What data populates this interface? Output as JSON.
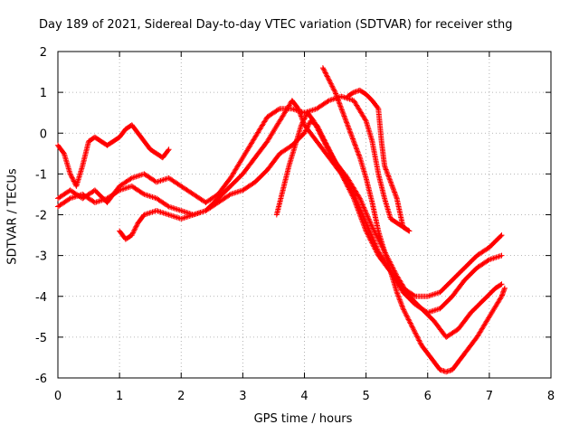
{
  "chart_data": {
    "type": "line",
    "title": "Day 189 of 2021, Sidereal Day-to-day VTEC variation (SDTVAR) for receiver sthg",
    "xlabel": "GPS time / hours",
    "ylabel": "SDTVAR / TECUs",
    "xlim": [
      0,
      8
    ],
    "ylim": [
      -6,
      2
    ],
    "xticks": [
      0,
      1,
      2,
      3,
      4,
      5,
      6,
      7,
      8
    ],
    "yticks": [
      -6,
      -5,
      -4,
      -3,
      -2,
      -1,
      0,
      1,
      2
    ],
    "grid": true,
    "marker": "plus",
    "color": "#ff0000",
    "series": [
      {
        "name": "s1",
        "points": [
          [
            0.0,
            -0.3
          ],
          [
            0.1,
            -0.5
          ],
          [
            0.2,
            -1.0
          ],
          [
            0.3,
            -1.3
          ],
          [
            0.4,
            -0.8
          ],
          [
            0.5,
            -0.2
          ],
          [
            0.6,
            -0.1
          ],
          [
            0.7,
            -0.2
          ],
          [
            0.8,
            -0.3
          ],
          [
            0.9,
            -0.2
          ],
          [
            1.0,
            -0.1
          ],
          [
            1.1,
            0.1
          ],
          [
            1.2,
            0.2
          ],
          [
            1.3,
            0.0
          ],
          [
            1.4,
            -0.2
          ],
          [
            1.5,
            -0.4
          ],
          [
            1.6,
            -0.5
          ],
          [
            1.7,
            -0.6
          ],
          [
            1.8,
            -0.4
          ]
        ]
      },
      {
        "name": "s2",
        "points": [
          [
            0.0,
            -1.8
          ],
          [
            0.2,
            -1.6
          ],
          [
            0.4,
            -1.5
          ],
          [
            0.6,
            -1.7
          ],
          [
            0.8,
            -1.6
          ],
          [
            1.0,
            -1.4
          ],
          [
            1.2,
            -1.3
          ],
          [
            1.4,
            -1.5
          ],
          [
            1.6,
            -1.6
          ],
          [
            1.8,
            -1.8
          ],
          [
            2.0,
            -1.9
          ],
          [
            2.2,
            -2.0
          ],
          [
            2.4,
            -1.9
          ],
          [
            2.6,
            -1.7
          ],
          [
            2.8,
            -1.5
          ],
          [
            3.0,
            -1.4
          ],
          [
            3.2,
            -1.2
          ],
          [
            3.4,
            -0.9
          ],
          [
            3.6,
            -0.5
          ],
          [
            3.8,
            -0.3
          ],
          [
            4.0,
            0.0
          ],
          [
            4.1,
            0.3
          ],
          [
            4.2,
            0.2
          ],
          [
            4.3,
            -0.1
          ],
          [
            4.4,
            -0.4
          ],
          [
            4.6,
            -1.0
          ],
          [
            4.8,
            -1.6
          ],
          [
            5.0,
            -2.4
          ],
          [
            5.2,
            -3.0
          ],
          [
            5.4,
            -3.4
          ],
          [
            5.6,
            -3.9
          ],
          [
            5.8,
            -4.2
          ],
          [
            6.0,
            -4.4
          ],
          [
            6.2,
            -4.3
          ],
          [
            6.4,
            -4.0
          ],
          [
            6.6,
            -3.6
          ],
          [
            6.8,
            -3.3
          ],
          [
            7.0,
            -3.1
          ],
          [
            7.2,
            -3.0
          ]
        ]
      },
      {
        "name": "s3",
        "points": [
          [
            0.0,
            -1.6
          ],
          [
            0.2,
            -1.4
          ],
          [
            0.4,
            -1.6
          ],
          [
            0.6,
            -1.4
          ],
          [
            0.8,
            -1.7
          ],
          [
            1.0,
            -1.3
          ],
          [
            1.2,
            -1.1
          ],
          [
            1.4,
            -1.0
          ],
          [
            1.6,
            -1.2
          ],
          [
            1.8,
            -1.1
          ],
          [
            2.0,
            -1.3
          ],
          [
            2.2,
            -1.5
          ],
          [
            2.4,
            -1.7
          ],
          [
            2.6,
            -1.5
          ],
          [
            2.8,
            -1.1
          ],
          [
            3.0,
            -0.6
          ],
          [
            3.2,
            -0.1
          ],
          [
            3.4,
            0.4
          ],
          [
            3.6,
            0.6
          ],
          [
            3.8,
            0.6
          ],
          [
            4.0,
            0.5
          ],
          [
            4.2,
            0.6
          ],
          [
            4.4,
            0.8
          ],
          [
            4.6,
            0.9
          ],
          [
            4.8,
            0.8
          ],
          [
            5.0,
            0.3
          ],
          [
            5.1,
            -0.2
          ],
          [
            5.2,
            -1.0
          ],
          [
            5.3,
            -1.6
          ],
          [
            5.4,
            -2.1
          ],
          [
            5.5,
            -2.2
          ],
          [
            5.6,
            -2.3
          ],
          [
            5.7,
            -2.4
          ]
        ]
      },
      {
        "name": "s4",
        "points": [
          [
            1.0,
            -2.4
          ],
          [
            1.1,
            -2.6
          ],
          [
            1.2,
            -2.5
          ],
          [
            1.3,
            -2.2
          ],
          [
            1.4,
            -2.0
          ],
          [
            1.6,
            -1.9
          ],
          [
            1.8,
            -2.0
          ],
          [
            2.0,
            -2.1
          ],
          [
            2.2,
            -2.0
          ],
          [
            2.4,
            -1.9
          ],
          [
            2.6,
            -1.6
          ],
          [
            2.8,
            -1.3
          ],
          [
            3.0,
            -1.0
          ],
          [
            3.2,
            -0.6
          ],
          [
            3.4,
            -0.2
          ],
          [
            3.6,
            0.3
          ],
          [
            3.8,
            0.8
          ],
          [
            3.9,
            0.6
          ],
          [
            4.0,
            0.2
          ],
          [
            4.2,
            -0.2
          ],
          [
            4.4,
            -0.6
          ],
          [
            4.6,
            -1.0
          ],
          [
            4.8,
            -1.5
          ],
          [
            5.0,
            -2.2
          ],
          [
            5.2,
            -2.9
          ],
          [
            5.4,
            -3.4
          ],
          [
            5.6,
            -3.8
          ],
          [
            5.8,
            -4.0
          ],
          [
            6.0,
            -4.0
          ],
          [
            6.2,
            -3.9
          ],
          [
            6.4,
            -3.6
          ],
          [
            6.6,
            -3.3
          ],
          [
            6.8,
            -3.0
          ],
          [
            7.0,
            -2.8
          ],
          [
            7.2,
            -2.5
          ]
        ]
      },
      {
        "name": "s5",
        "points": [
          [
            3.55,
            -2.0
          ],
          [
            3.65,
            -1.4
          ],
          [
            3.75,
            -0.8
          ],
          [
            3.85,
            -0.3
          ],
          [
            3.95,
            0.2
          ],
          [
            4.05,
            0.5
          ],
          [
            4.15,
            0.3
          ],
          [
            4.25,
            0.0
          ],
          [
            4.35,
            -0.3
          ],
          [
            4.5,
            -0.7
          ],
          [
            4.7,
            -1.1
          ],
          [
            4.9,
            -1.6
          ],
          [
            5.1,
            -2.3
          ],
          [
            5.3,
            -2.9
          ],
          [
            5.5,
            -3.5
          ],
          [
            5.7,
            -4.0
          ],
          [
            5.9,
            -4.3
          ],
          [
            6.1,
            -4.6
          ],
          [
            6.3,
            -5.0
          ],
          [
            6.5,
            -4.8
          ],
          [
            6.7,
            -4.4
          ],
          [
            6.9,
            -4.1
          ],
          [
            7.1,
            -3.8
          ],
          [
            7.2,
            -3.7
          ]
        ]
      },
      {
        "name": "s6",
        "points": [
          [
            4.3,
            1.6
          ],
          [
            4.4,
            1.3
          ],
          [
            4.5,
            1.0
          ],
          [
            4.6,
            0.6
          ],
          [
            4.7,
            0.2
          ],
          [
            4.8,
            -0.2
          ],
          [
            4.9,
            -0.6
          ],
          [
            5.0,
            -1.1
          ],
          [
            5.1,
            -1.7
          ],
          [
            5.2,
            -2.4
          ],
          [
            5.3,
            -2.9
          ],
          [
            5.4,
            -3.4
          ],
          [
            5.5,
            -3.9
          ],
          [
            5.6,
            -4.3
          ],
          [
            5.7,
            -4.6
          ],
          [
            5.8,
            -4.9
          ],
          [
            5.9,
            -5.2
          ],
          [
            6.0,
            -5.4
          ],
          [
            6.1,
            -5.6
          ],
          [
            6.2,
            -5.8
          ],
          [
            6.3,
            -5.85
          ],
          [
            6.4,
            -5.8
          ],
          [
            6.5,
            -5.6
          ],
          [
            6.6,
            -5.4
          ],
          [
            6.8,
            -5.0
          ],
          [
            7.0,
            -4.5
          ],
          [
            7.2,
            -4.0
          ],
          [
            7.25,
            -3.8
          ]
        ]
      },
      {
        "name": "s7",
        "points": [
          [
            4.7,
            0.9
          ],
          [
            4.8,
            1.0
          ],
          [
            4.9,
            1.05
          ],
          [
            5.0,
            0.95
          ],
          [
            5.1,
            0.8
          ],
          [
            5.2,
            0.6
          ],
          [
            5.25,
            -0.2
          ],
          [
            5.3,
            -0.8
          ],
          [
            5.4,
            -1.2
          ],
          [
            5.5,
            -1.6
          ],
          [
            5.6,
            -2.3
          ],
          [
            5.7,
            -2.4
          ]
        ]
      }
    ]
  }
}
